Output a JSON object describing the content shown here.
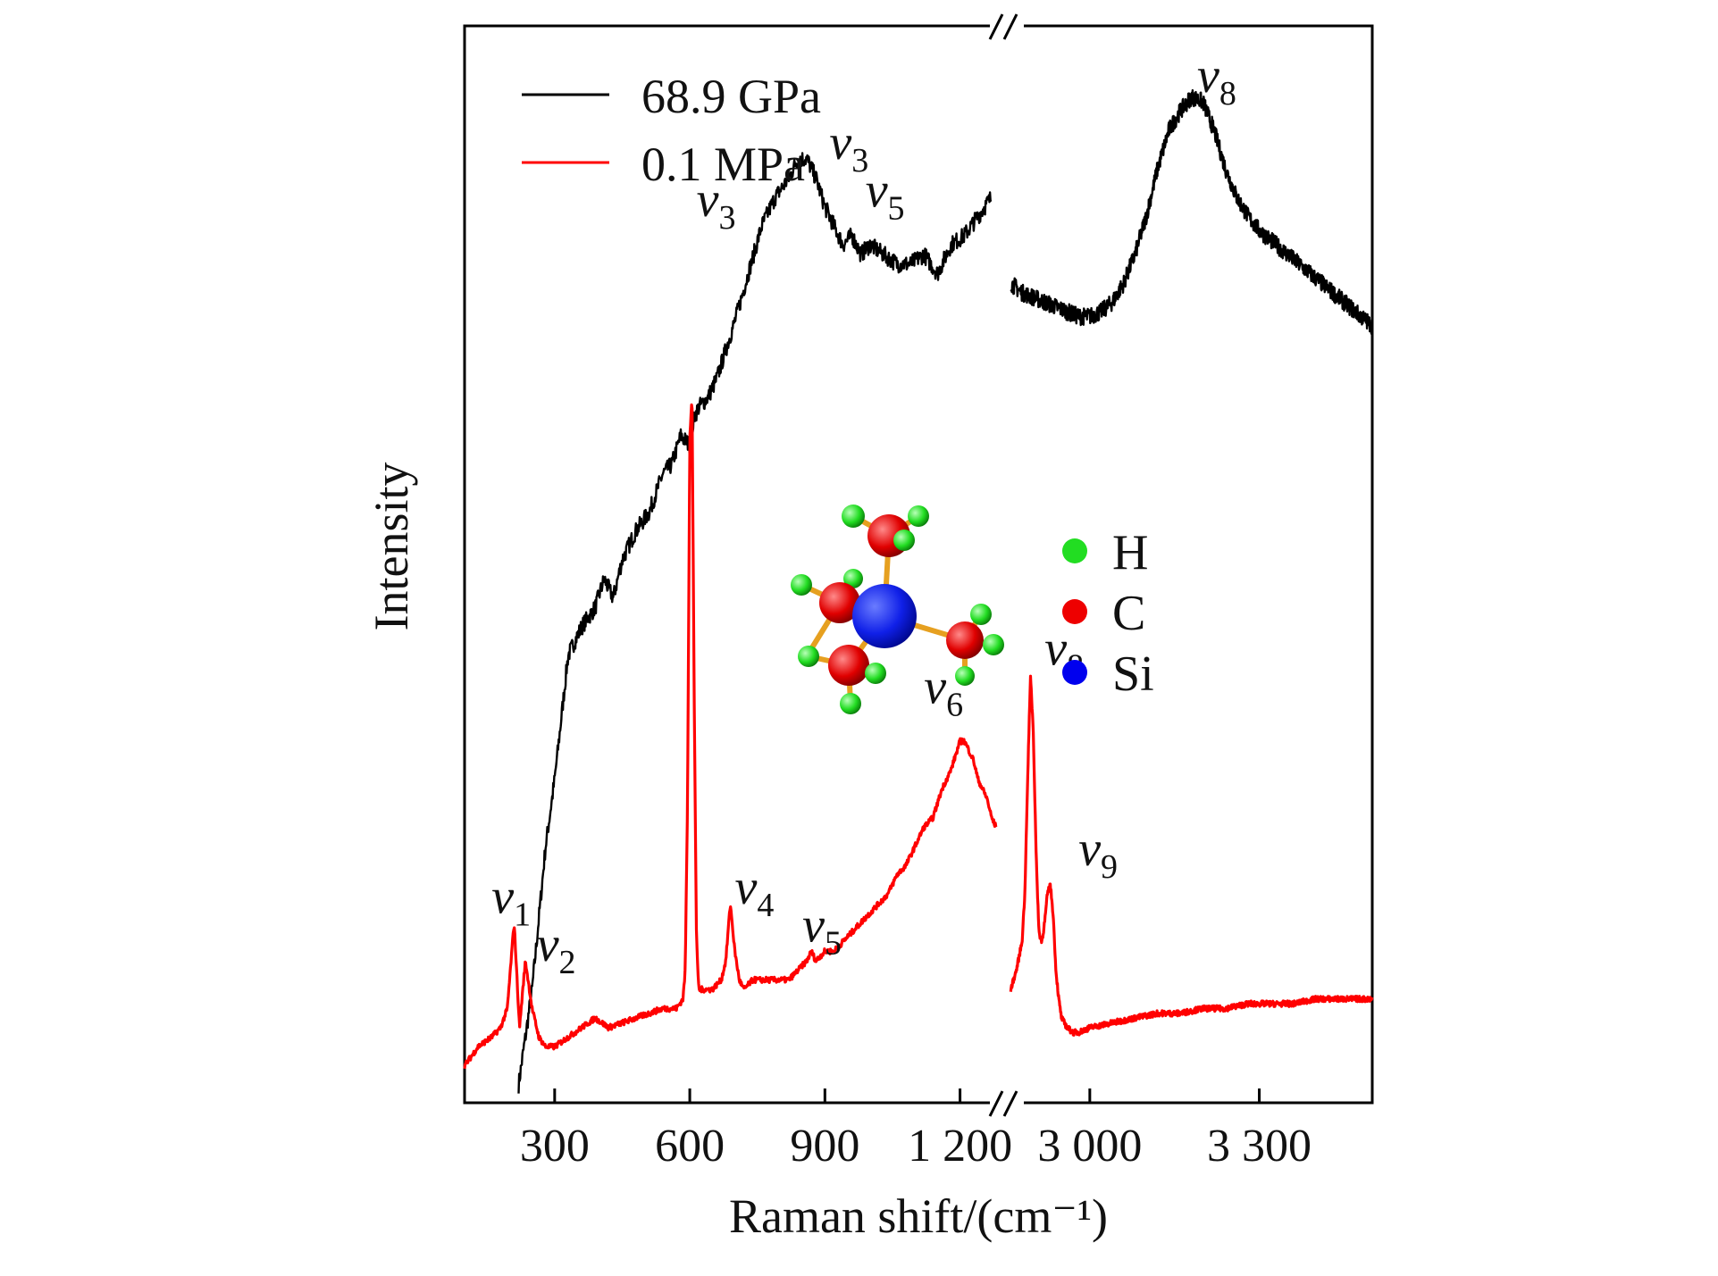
{
  "chart_data": {
    "type": "line",
    "xlabel": "Raman shift/(cm⁻¹)",
    "ylabel": "Intensity",
    "axis_break": "after 1 200, before 3 000 (//)",
    "segments": [
      {
        "name": "low",
        "xlim": [
          100,
          1300
        ],
        "ticks": [
          300,
          600,
          900,
          1200
        ],
        "tick_labels": [
          "300",
          "600",
          "900",
          "1 200"
        ]
      },
      {
        "name": "high",
        "xlim": [
          2850,
          3500
        ],
        "ticks": [
          3000,
          3300
        ],
        "tick_labels": [
          "3 000",
          "3 300"
        ]
      }
    ],
    "ylim": [
      0,
      100
    ],
    "legend": {
      "position": "top-left",
      "entries": [
        {
          "label": "68.9 GPa",
          "color": "#000000"
        },
        {
          "label": "0.1 MPa",
          "color": "#ff0000"
        }
      ]
    },
    "series": [
      {
        "name": "68.9 GPa",
        "color": "#000000",
        "noise": 0.9,
        "low": {
          "x": [
            220,
            250,
            280,
            300,
            330,
            360,
            390,
            410,
            430,
            450,
            480,
            510,
            540,
            560,
            580,
            600,
            610,
            620,
            640,
            660,
            680,
            700,
            730,
            760,
            790,
            820,
            840,
            860,
            880,
            900,
            920,
            940,
            960,
            980,
            1000,
            1030,
            1060,
            1090,
            1120,
            1150,
            1180,
            1210,
            1240,
            1270
          ],
          "y": [
            0,
            10,
            25,
            32,
            45,
            48,
            50,
            53,
            51,
            55,
            58,
            60,
            64,
            65,
            68,
            67,
            70,
            71,
            72,
            74,
            77,
            80,
            85,
            90,
            93,
            95,
            97,
            97,
            95,
            92,
            90,
            88,
            89,
            87,
            88,
            87,
            86,
            86,
            87,
            85,
            88,
            89,
            91,
            93
          ]
        },
        "high": {
          "x": [
            2860,
            2880,
            2900,
            2920,
            2940,
            2960,
            2980,
            3000,
            3020,
            3040,
            3060,
            3080,
            3100,
            3120,
            3140,
            3160,
            3180,
            3200,
            3220,
            3240,
            3260,
            3280,
            3300,
            3320,
            3340,
            3360,
            3380,
            3400,
            3420,
            3440,
            3460,
            3480,
            3500
          ],
          "y": [
            84,
            83,
            82.5,
            82,
            81.5,
            81,
            80.5,
            80.5,
            81,
            82,
            84,
            87,
            91,
            96,
            100,
            102,
            103.5,
            103,
            100,
            96,
            93,
            91,
            89.5,
            88.5,
            87.5,
            86.5,
            85.5,
            84.5,
            83.5,
            82.5,
            81.5,
            80.5,
            79.5
          ]
        }
      },
      {
        "name": "0.1 MPa",
        "color": "#ff0000",
        "noise": 0.3,
        "low": {
          "x": [
            100,
            130,
            160,
            180,
            195,
            210,
            222,
            235,
            250,
            265,
            280,
            300,
            330,
            360,
            390,
            420,
            450,
            480,
            510,
            540,
            570,
            585,
            590,
            595,
            600,
            605,
            610,
            615,
            620,
            630,
            650,
            670,
            680,
            690,
            700,
            710,
            720,
            740,
            760,
            780,
            800,
            820,
            840,
            860,
            870,
            880,
            900,
            920,
            940,
            960,
            980,
            1000,
            1020,
            1040,
            1060,
            1080,
            1100,
            1120,
            1140,
            1160,
            1180,
            1200,
            1210,
            1220,
            1230,
            1240,
            1250,
            1260,
            1270,
            1280
          ],
          "y": [
            2,
            4,
            5,
            6,
            8,
            17,
            6,
            13,
            8,
            5,
            4,
            4,
            5,
            6,
            7,
            6,
            6.5,
            7,
            7.5,
            8,
            8,
            9,
            12,
            30,
            68,
            72,
            40,
            15,
            10,
            10,
            10,
            11,
            13,
            19,
            14,
            11,
            10,
            11,
            11,
            11,
            11,
            11,
            12,
            13,
            14,
            13,
            14,
            14,
            15,
            16,
            17,
            18,
            19,
            20,
            22,
            23,
            25,
            27,
            28,
            31,
            33,
            36,
            36,
            35,
            34,
            32,
            31,
            30,
            28,
            27
          ]
        },
        "high": {
          "x": [
            2860,
            2870,
            2880,
            2885,
            2890,
            2895,
            2900,
            2905,
            2910,
            2915,
            2920,
            2925,
            2930,
            2935,
            2940,
            2945,
            2950,
            2960,
            2970,
            2980,
            3000,
            3040,
            3080,
            3120,
            3160,
            3200,
            3240,
            3280,
            3320,
            3360,
            3400,
            3440,
            3480,
            3500
          ],
          "y": [
            10,
            12,
            15,
            20,
            32,
            43,
            37,
            24,
            16,
            15,
            17,
            20,
            21,
            18,
            12,
            9,
            7,
            6,
            5.5,
            5.5,
            6,
            6.5,
            7,
            7.5,
            7.5,
            8,
            8,
            8.5,
            8.5,
            8.5,
            9,
            9,
            9,
            9
          ]
        }
      }
    ],
    "annotations": [
      {
        "series": "68.9 GPa",
        "base": "ν",
        "sub": "3",
        "x": 910,
        "y": 97
      },
      {
        "series": "68.9 GPa",
        "base": "ν",
        "sub": "5",
        "x": 990,
        "y": 92
      },
      {
        "series": "68.9 GPa",
        "base": "ν",
        "sub": "8",
        "x": 3190,
        "y": 104
      },
      {
        "series": "0.1 MPa",
        "base": "ν",
        "sub": "3",
        "x": 615,
        "y": 91
      },
      {
        "series": "0.1 MPa",
        "base": "ν",
        "sub": "1",
        "x": 160,
        "y": 18
      },
      {
        "series": "0.1 MPa",
        "base": "ν",
        "sub": "2",
        "x": 260,
        "y": 13
      },
      {
        "series": "0.1 MPa",
        "base": "ν",
        "sub": "4",
        "x": 700,
        "y": 19
      },
      {
        "series": "0.1 MPa",
        "base": "ν",
        "sub": "5",
        "x": 850,
        "y": 15
      },
      {
        "series": "0.1 MPa",
        "base": "ν",
        "sub": "6",
        "x": 1120,
        "y": 40
      },
      {
        "series": "0.1 MPa",
        "base": "ν",
        "sub": "8",
        "x": 2920,
        "y": 44
      },
      {
        "series": "0.1 MPa",
        "base": "ν",
        "sub": "9",
        "x": 2980,
        "y": 23
      }
    ],
    "atom_key": [
      {
        "symbol": "H",
        "color": "#22dd22"
      },
      {
        "symbol": "C",
        "color": "#ee0000"
      },
      {
        "symbol": "Si",
        "color": "#0000ee"
      }
    ],
    "inset": "Si(CH3)4 molecule ball-and-stick model"
  }
}
